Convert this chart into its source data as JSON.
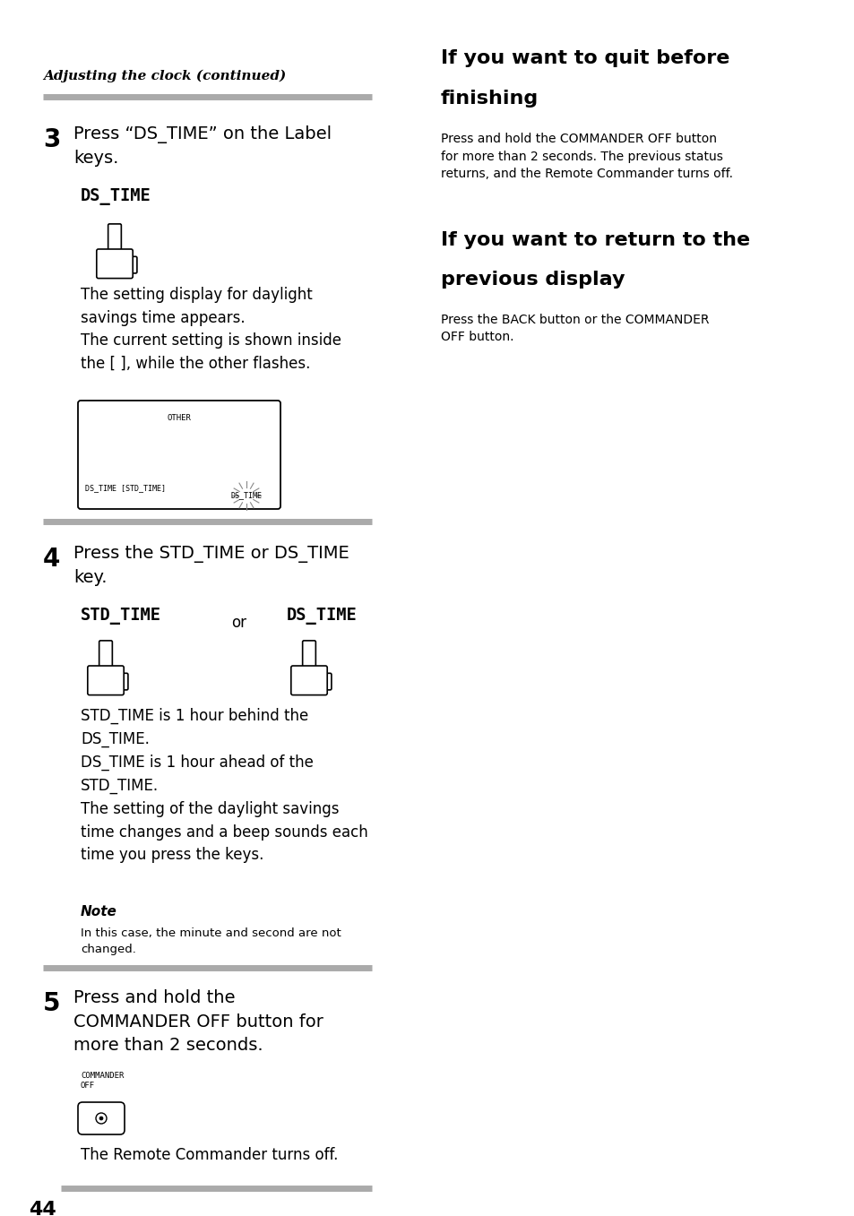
{
  "bg_color": "#ffffff",
  "title_italic_bold": "Adjusting the clock (continued)",
  "right_heading1_line1": "If you want to quit before",
  "right_heading1_line2": "finishing",
  "right_body1": "Press and hold the COMMANDER OFF button\nfor more than 2 seconds. The previous status\nreturns, and the Remote Commander turns off.",
  "right_heading2_line1": "If you want to return to the",
  "right_heading2_line2": "previous display",
  "right_body2": "Press the BACK button or the COMMANDER\nOFF button.",
  "step3_num": "3",
  "step3_text": "Press “DS_TIME” on the Label\nkeys.",
  "step3_label": "DS_TIME",
  "step3_desc": "The setting display for daylight\nsavings time appears.\nThe current setting is shown inside\nthe [ ], while the other flashes.",
  "screen_other": "OTHER",
  "screen_bottom_left": "DS_TIME [STD_TIME]",
  "screen_bottom_right": "DS_TIME",
  "step4_num": "4",
  "step4_text": "Press the STD_TIME or DS_TIME\nkey.",
  "step4_label1": "STD_TIME",
  "step4_or": "or",
  "step4_label2": "DS_TIME",
  "step4_desc": "STD_TIME is 1 hour behind the\nDS_TIME.\nDS_TIME is 1 hour ahead of the\nSTD_TIME.\nThe setting of the daylight savings\ntime changes and a beep sounds each\ntime you press the keys.",
  "note_bold": "Note",
  "note_text": "In this case, the minute and second are not\nchanged.",
  "step5_num": "5",
  "step5_text": "Press and hold the\nCOMMANDER OFF button for\nmore than 2 seconds.",
  "step5_label": "COMMANDER\nOFF",
  "step5_desc": "The Remote Commander turns off.",
  "page_num": "44",
  "gray_bar_color": "#aaaaaa"
}
